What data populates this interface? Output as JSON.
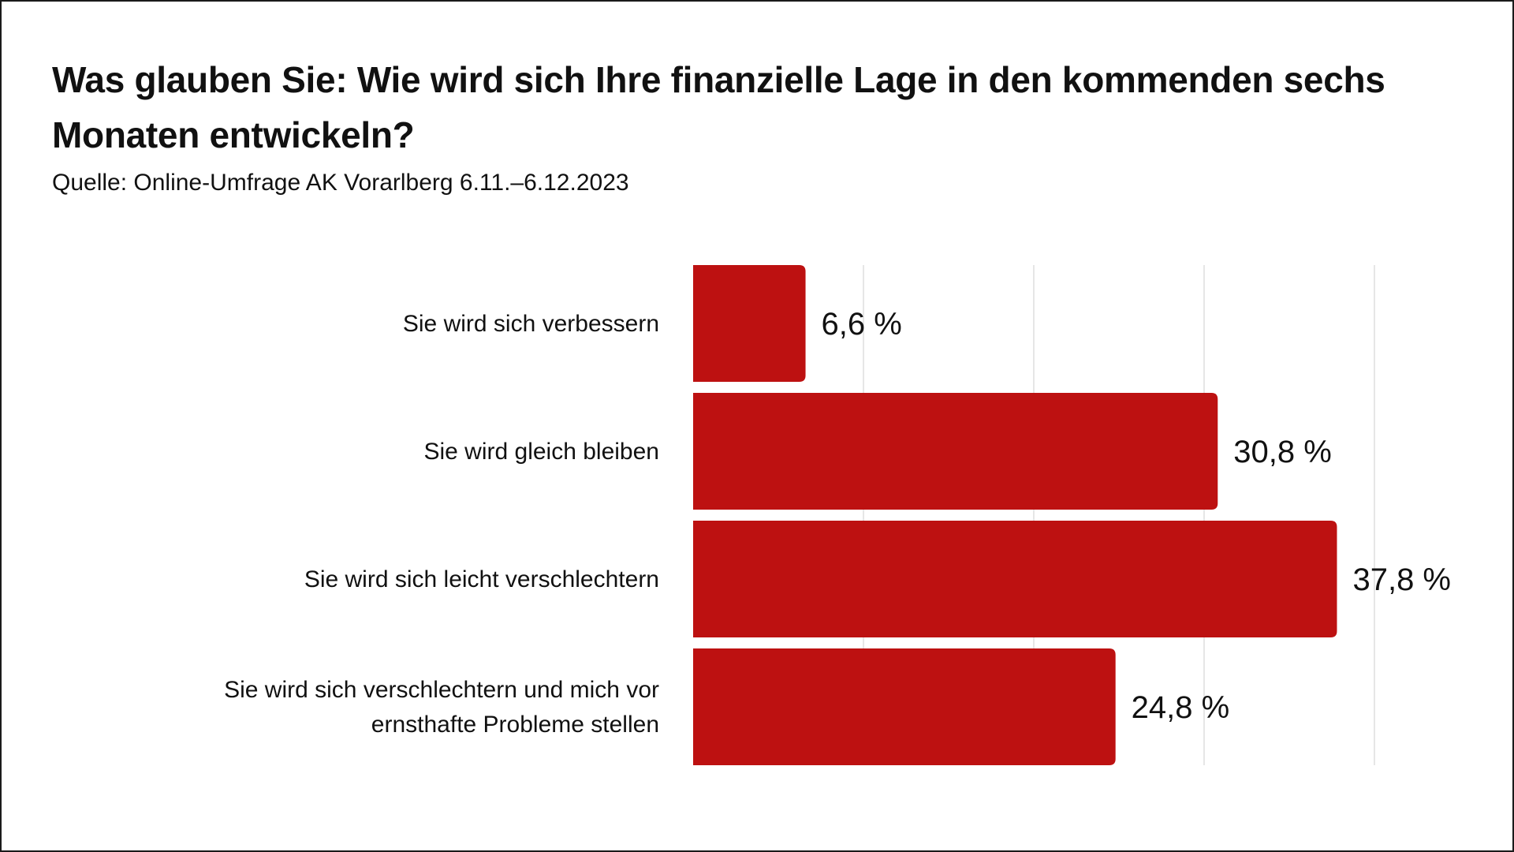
{
  "header": {
    "title": "Was glauben Sie: Wie wird sich Ihre finanzielle Lage in den kommenden sechs Monaten entwickeln?",
    "source": "Quelle: Online-Umfrage AK Vorarlberg 6.11.–6.12.2023"
  },
  "colors": {
    "bar": "#bd1111",
    "grid": "#dddddd",
    "text": "#111111"
  },
  "chart_data": {
    "type": "bar",
    "orientation": "horizontal",
    "title": "Was glauben Sie: Wie wird sich Ihre finanzielle Lage in den kommenden sechs Monaten entwickeln?",
    "subtitle": "Quelle: Online-Umfrage AK Vorarlberg 6.11.–6.12.2023",
    "categories": [
      [
        "Sie wird sich verbessern"
      ],
      [
        "Sie wird gleich bleiben"
      ],
      [
        "Sie wird sich leicht verschlechtern"
      ],
      [
        "Sie wird sich verschlechtern und mich vor",
        "ernsthafte Probleme stellen"
      ]
    ],
    "values": [
      6.6,
      30.8,
      37.8,
      24.8
    ],
    "value_labels": [
      "6,6 %",
      "30,8 %",
      "37,8 %",
      "24,8 %"
    ],
    "xlim": [
      0,
      40
    ],
    "gridlines": [
      10,
      20,
      30,
      40
    ],
    "grid": true,
    "xlabel": "",
    "ylabel": ""
  }
}
